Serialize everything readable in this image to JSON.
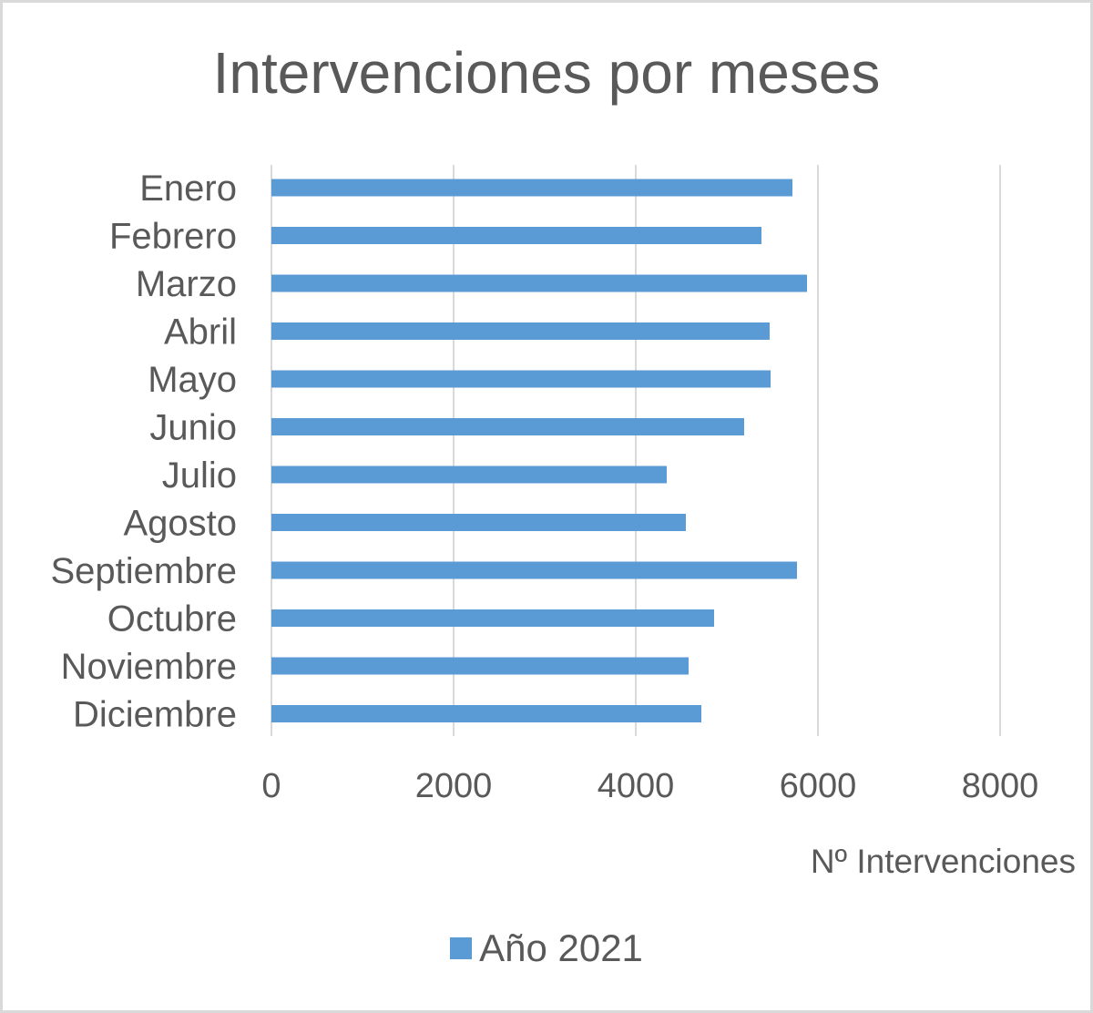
{
  "chart_data": {
    "type": "bar",
    "orientation": "horizontal",
    "title": "Intervenciones por meses",
    "categories": [
      "Enero",
      "Febrero",
      "Marzo",
      "Abril",
      "Mayo",
      "Junio",
      "Julio",
      "Agosto",
      "Septiembre",
      "Octubre",
      "Noviembre",
      "Diciembre"
    ],
    "series": [
      {
        "name": "Año 2021",
        "values": [
          5720,
          5380,
          5880,
          5470,
          5480,
          5190,
          4340,
          4550,
          5770,
          4860,
          4580,
          4720
        ]
      }
    ],
    "xlabel": "Nº Intervenciones",
    "ylabel": "",
    "xlim": [
      0,
      8000
    ],
    "xticks": [
      "0",
      "2000",
      "4000",
      "6000",
      "8000"
    ],
    "grid": "vertical",
    "legend_position": "bottom",
    "bar_color": "#5b9bd5",
    "gridline_color": "#d9d9d9",
    "text_color": "#595959"
  }
}
